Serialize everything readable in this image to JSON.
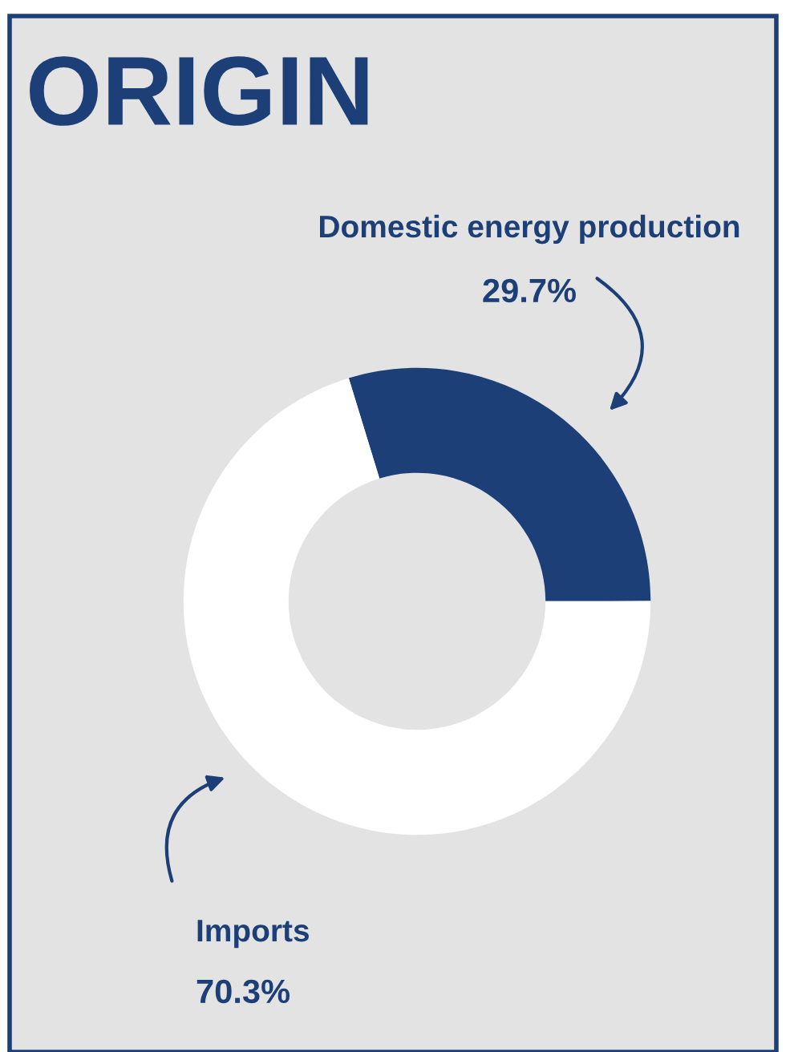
{
  "chart_data": {
    "type": "donut",
    "title": "ORIGIN",
    "categories": [
      "Domestic energy production",
      "Imports"
    ],
    "values": [
      29.7,
      70.3
    ],
    "value_labels": [
      "29.7%",
      "70.3%"
    ],
    "colors": [
      "#1d3f78",
      "#ffffff"
    ]
  }
}
